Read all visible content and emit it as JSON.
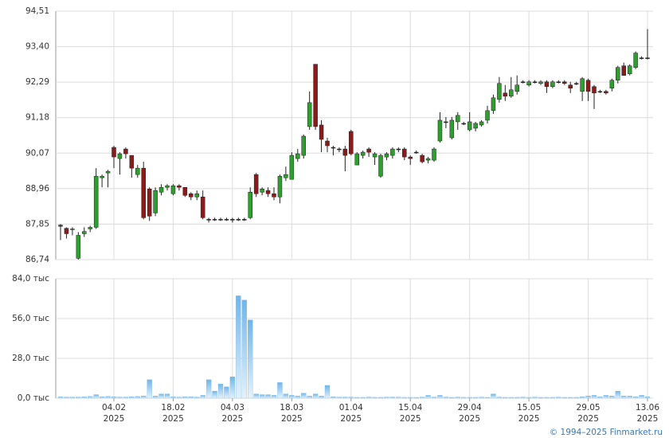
{
  "chart_data": [
    {
      "type": "candlestick",
      "up_color": "#2e9e2e",
      "down_color": "#8b1a1a",
      "wick_color": "#222222",
      "ylim": [
        86.74,
        94.51
      ],
      "yticks": [
        {
          "value": 86.74,
          "label": "86,74"
        },
        {
          "value": 87.85,
          "label": "87,85"
        },
        {
          "value": 88.96,
          "label": "88,96"
        },
        {
          "value": 90.07,
          "label": "90,07"
        },
        {
          "value": 91.18,
          "label": "91,18"
        },
        {
          "value": 92.29,
          "label": "92,29"
        },
        {
          "value": 93.4,
          "label": "93,40"
        },
        {
          "value": 94.51,
          "label": "94,51"
        }
      ],
      "grid": true,
      "open": [
        87.82,
        87.72,
        87.68,
        86.78,
        87.55,
        87.7,
        87.75,
        89.3,
        89.45,
        90.25,
        89.9,
        90.2,
        90.0,
        89.4,
        89.6,
        88.95,
        88.2,
        88.85,
        89.0,
        88.8,
        89.05,
        89.0,
        88.8,
        88.7,
        88.7,
        88.0,
        88.0,
        88.0,
        88.0,
        88.0,
        88.0,
        88.0,
        88.05,
        89.4,
        88.85,
        88.9,
        88.8,
        88.7,
        89.3,
        89.25,
        89.9,
        90.0,
        90.9,
        92.85,
        90.95,
        90.45,
        90.25,
        90.2,
        90.2,
        90.75,
        89.7,
        90.0,
        90.2,
        89.95,
        89.35,
        89.95,
        90.0,
        90.2,
        90.2,
        89.95,
        90.1,
        90.0,
        89.85,
        89.85,
        90.45,
        91.05,
        90.55,
        91.05,
        91.0,
        90.8,
        90.85,
        90.95,
        91.1,
        91.4,
        91.75,
        91.95,
        91.85,
        92.0,
        92.3,
        92.2,
        92.3,
        92.25,
        92.3,
        92.15,
        92.3,
        92.3,
        92.2,
        92.25,
        92.0,
        92.35,
        92.15,
        92.0,
        92.0,
        92.1,
        92.35,
        92.8,
        92.55,
        92.75,
        93.05,
        93.05
      ],
      "high": [
        87.85,
        87.75,
        87.75,
        87.6,
        87.75,
        87.8,
        89.6,
        89.4,
        89.55,
        90.3,
        90.1,
        90.25,
        90.0,
        89.7,
        89.8,
        89.0,
        89.0,
        89.1,
        89.1,
        89.1,
        89.1,
        89.0,
        88.85,
        88.9,
        88.9,
        88.05,
        88.05,
        88.05,
        88.05,
        88.05,
        88.05,
        88.05,
        89.0,
        89.45,
        89.0,
        89.0,
        89.0,
        89.4,
        89.65,
        90.1,
        90.2,
        90.65,
        92.0,
        92.85,
        91.1,
        90.55,
        90.3,
        90.25,
        90.3,
        90.8,
        90.1,
        90.15,
        90.25,
        90.1,
        90.05,
        90.1,
        90.25,
        90.25,
        90.25,
        90.0,
        90.15,
        90.05,
        89.95,
        90.25,
        91.35,
        91.2,
        91.2,
        91.35,
        91.05,
        91.35,
        91.05,
        91.1,
        91.55,
        91.9,
        92.45,
        92.2,
        92.45,
        92.5,
        92.35,
        92.35,
        92.35,
        92.35,
        92.35,
        92.35,
        92.35,
        92.35,
        92.3,
        92.3,
        92.45,
        92.4,
        92.2,
        92.05,
        92.05,
        92.4,
        92.8,
        92.9,
        92.85,
        93.25,
        93.1,
        93.95
      ],
      "low": [
        87.35,
        87.4,
        87.5,
        86.74,
        87.45,
        87.6,
        87.7,
        89.0,
        89.0,
        89.6,
        89.4,
        89.9,
        89.3,
        89.3,
        88.0,
        87.95,
        88.1,
        88.75,
        88.9,
        88.75,
        88.9,
        88.7,
        88.6,
        88.6,
        88.0,
        87.9,
        87.95,
        87.95,
        87.95,
        87.9,
        87.95,
        87.95,
        88.0,
        88.7,
        88.75,
        88.7,
        88.6,
        88.5,
        89.2,
        89.25,
        89.8,
        89.9,
        90.8,
        90.8,
        90.1,
        90.1,
        90.0,
        90.1,
        89.5,
        90.0,
        89.7,
        89.9,
        89.95,
        89.7,
        89.3,
        89.85,
        89.9,
        90.1,
        89.85,
        89.7,
        90.05,
        89.75,
        89.75,
        89.8,
        90.4,
        90.85,
        90.5,
        90.8,
        90.95,
        90.75,
        90.75,
        90.9,
        91.0,
        91.3,
        91.65,
        91.7,
        91.8,
        91.9,
        92.25,
        92.15,
        92.25,
        92.2,
        91.95,
        92.1,
        92.25,
        92.2,
        91.95,
        92.2,
        91.7,
        91.7,
        91.45,
        91.95,
        91.9,
        92.0,
        92.25,
        92.5,
        92.5,
        92.7,
        93.0,
        93.0
      ],
      "close": [
        87.78,
        87.55,
        87.7,
        87.5,
        87.62,
        87.75,
        89.35,
        89.35,
        89.5,
        89.95,
        90.05,
        90.05,
        89.6,
        89.6,
        88.05,
        88.1,
        88.9,
        89.0,
        89.05,
        89.05,
        89.0,
        88.75,
        88.7,
        88.8,
        88.05,
        88.0,
        88.0,
        88.0,
        88.0,
        88.0,
        88.0,
        88.0,
        88.85,
        88.8,
        88.95,
        88.8,
        88.7,
        89.35,
        89.4,
        90.0,
        90.05,
        90.6,
        91.65,
        90.9,
        90.5,
        90.3,
        90.25,
        90.2,
        90.0,
        90.05,
        90.05,
        90.1,
        90.1,
        90.05,
        90.0,
        90.05,
        90.2,
        90.2,
        89.95,
        89.9,
        90.1,
        89.8,
        89.9,
        90.2,
        91.1,
        91.05,
        91.1,
        91.25,
        91.0,
        91.05,
        91.0,
        91.05,
        91.4,
        91.8,
        92.25,
        91.85,
        92.05,
        92.2,
        92.3,
        92.3,
        92.3,
        92.3,
        92.15,
        92.3,
        92.3,
        92.25,
        92.1,
        92.25,
        92.4,
        92.0,
        91.95,
        92.0,
        91.95,
        92.35,
        92.75,
        92.5,
        92.8,
        93.2,
        93.05,
        93.05
      ]
    },
    {
      "type": "bar",
      "color": "#6fb5ea",
      "ylim": [
        0,
        84
      ],
      "yticks": [
        {
          "value": 0,
          "label": "0,0 тыс"
        },
        {
          "value": 28,
          "label": "28,0 тыс"
        },
        {
          "value": 56,
          "label": "56,0 тыс"
        },
        {
          "value": 84,
          "label": "84,0 тыс"
        }
      ],
      "grid": true,
      "x_sublabel": "2025",
      "categories": [
        null,
        null,
        null,
        null,
        null,
        null,
        null,
        null,
        null,
        "04.02",
        null,
        null,
        null,
        null,
        null,
        null,
        null,
        null,
        null,
        "18.02",
        null,
        null,
        null,
        null,
        null,
        null,
        null,
        null,
        null,
        "04.03",
        null,
        null,
        null,
        null,
        null,
        null,
        null,
        null,
        null,
        "18.03",
        null,
        null,
        null,
        null,
        null,
        null,
        null,
        null,
        null,
        "01.04",
        null,
        null,
        null,
        null,
        null,
        null,
        null,
        null,
        null,
        "15.04",
        null,
        null,
        null,
        null,
        null,
        null,
        null,
        null,
        null,
        "29.04",
        null,
        null,
        null,
        null,
        null,
        null,
        null,
        null,
        null,
        "15.05",
        null,
        null,
        null,
        null,
        null,
        null,
        null,
        null,
        null,
        "29.05",
        null,
        null,
        null,
        null,
        null,
        null,
        null,
        null,
        null,
        "13.06"
      ],
      "values": [
        1.0,
        0.8,
        0.8,
        0.8,
        1.0,
        1.2,
        2.5,
        1.0,
        1.2,
        1.0,
        0.8,
        0.8,
        1.0,
        1.2,
        1.5,
        13.0,
        1.5,
        3.0,
        3.0,
        1.0,
        0.8,
        1.0,
        1.0,
        0.8,
        2.0,
        13.0,
        5.0,
        10.0,
        8.0,
        15.0,
        72.0,
        69.0,
        55.0,
        3.0,
        2.5,
        2.5,
        2.0,
        11.0,
        3.0,
        2.0,
        1.5,
        3.5,
        1.5,
        3.0,
        1.5,
        9.0,
        1.0,
        0.8,
        0.8,
        0.8,
        0.6,
        0.6,
        0.8,
        0.6,
        0.6,
        0.8,
        0.8,
        0.8,
        0.6,
        0.6,
        0.6,
        0.8,
        2.0,
        0.8,
        2.0,
        0.8,
        0.6,
        0.8,
        0.6,
        0.6,
        0.6,
        0.8,
        0.6,
        3.0,
        0.8,
        0.6,
        0.6,
        0.6,
        0.8,
        0.6,
        0.8,
        0.6,
        0.6,
        0.6,
        0.8,
        0.6,
        0.6,
        0.6,
        1.0,
        1.5,
        2.0,
        1.0,
        2.0,
        1.5,
        5.0,
        1.5,
        1.5,
        1.0,
        2.0,
        1.0
      ]
    }
  ],
  "footer": "© 1994–2025 Finmarket.ru"
}
